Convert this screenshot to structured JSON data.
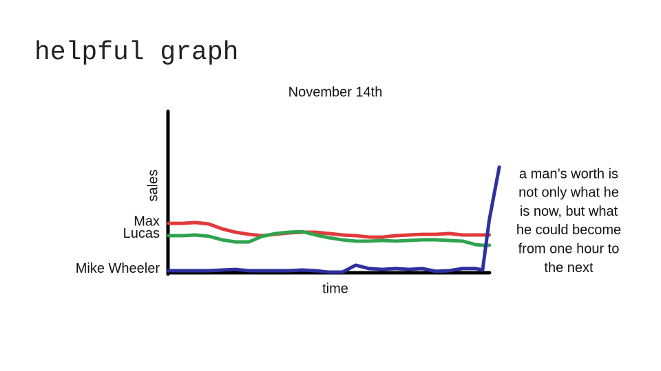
{
  "slide_title": "helpful graph",
  "chart_data": {
    "type": "line",
    "title": "November 14th",
    "y_label": "sales",
    "x_label": "time",
    "xlim": [
      0,
      100
    ],
    "ylim": [
      0,
      100
    ],
    "x": [
      0,
      4,
      8,
      12,
      16,
      20,
      24,
      28,
      32,
      36,
      40,
      44,
      48,
      52,
      56,
      60,
      64,
      68,
      72,
      76,
      80,
      84,
      88,
      92,
      94,
      96,
      99
    ],
    "series": [
      {
        "name": "Max",
        "color": "#e03a3a",
        "values": [
          30.6,
          30.6,
          31.1,
          30.2,
          27.2,
          25.1,
          23.8,
          23.0,
          23.8,
          24.7,
          25.1,
          25.1,
          24.3,
          23.4,
          23.0,
          22.1,
          22.1,
          23.0,
          23.4,
          23.8,
          23.8,
          24.3,
          23.4,
          23.4,
          23.4,
          23.4,
          null
        ]
      },
      {
        "name": "Lucas",
        "color": "#2fa34f",
        "values": [
          23.0,
          23.0,
          23.4,
          22.6,
          20.4,
          19.1,
          19.1,
          22.6,
          24.3,
          25.1,
          25.5,
          23.4,
          21.7,
          20.4,
          19.6,
          19.6,
          20.0,
          19.6,
          20.0,
          20.4,
          20.4,
          20.0,
          19.6,
          17.4,
          17.0,
          17.0,
          null
        ]
      },
      {
        "name": "Mike Wheeler",
        "color": "#3030a0",
        "values": [
          1.3,
          1.3,
          1.3,
          1.3,
          1.7,
          2.1,
          1.3,
          1.3,
          1.3,
          1.3,
          1.7,
          1.3,
          0.4,
          0.4,
          4.7,
          2.6,
          2.1,
          2.6,
          2.1,
          2.6,
          0.9,
          1.3,
          2.6,
          2.6,
          1.7,
          32.8,
          65.5
        ]
      }
    ],
    "annotation": [
      "a man’s worth is",
      "not only what he",
      "is now, but what",
      "he could become",
      "from one hour to",
      "the next"
    ]
  }
}
